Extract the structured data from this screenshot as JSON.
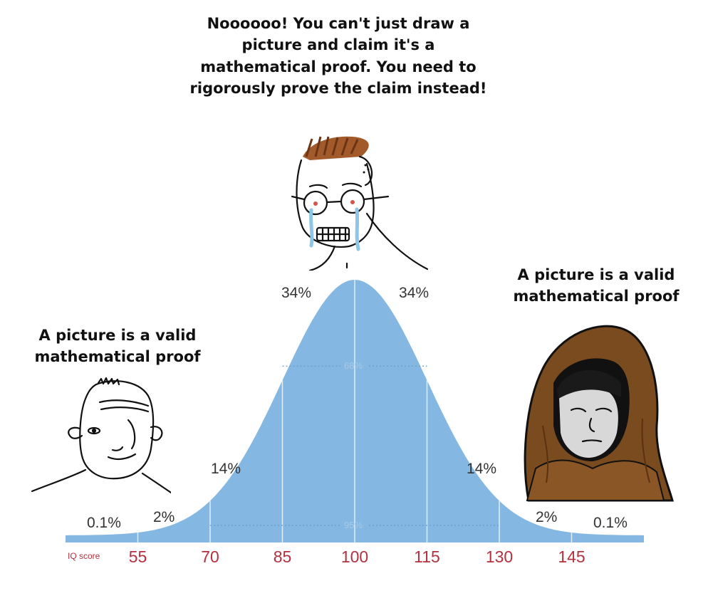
{
  "captions": {
    "top": "Noooooo!  You can't just draw a picture and claim it's a mathematical proof.  You need to rigorously prove the claim instead!",
    "left": "A picture is a valid mathematical proof",
    "right": "A picture is a valid mathematical proof"
  },
  "chart_data": {
    "type": "area",
    "title": "",
    "xlabel": "IQ score",
    "ylabel": "",
    "x_ticks": [
      55,
      70,
      85,
      100,
      115,
      130,
      145
    ],
    "mean": 100,
    "sd": 15,
    "xlim": [
      40,
      160
    ],
    "segment_labels": [
      "0.1%",
      "2%",
      "14%",
      "34%",
      "34%",
      "14%",
      "2%",
      "0.1%"
    ],
    "inner_labels": [
      "68%",
      "95%"
    ],
    "fill_color": "#84b8e2",
    "tick_color": "#b3303f"
  },
  "characters": [
    {
      "name": "wojak-left"
    },
    {
      "name": "crying-soyjak-top"
    },
    {
      "name": "hooded-monk-right"
    }
  ]
}
